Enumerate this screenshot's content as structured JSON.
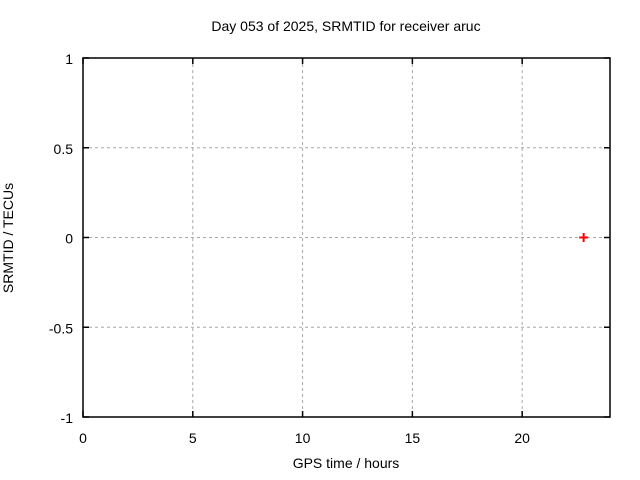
{
  "chart_data": {
    "type": "scatter",
    "title": "Day 053 of 2025, SRMTID for receiver aruc",
    "xlabel": "GPS time / hours",
    "ylabel": "SRMTID / TECUs",
    "xlim": [
      0,
      24
    ],
    "ylim": [
      -1,
      1
    ],
    "xticks": [
      0,
      5,
      10,
      15,
      20
    ],
    "yticks": [
      -1,
      -0.5,
      0,
      0.5,
      1
    ],
    "grid": true,
    "grid_style": "dashed",
    "legend": "none",
    "series": [
      {
        "marker": "plus",
        "color": "#ff0000",
        "points": [
          {
            "x": 22.8,
            "y": 0.0
          }
        ]
      }
    ]
  },
  "colors": {
    "background": "#ffffff",
    "frame": "#000000",
    "grid": "#a8a8a8",
    "text": "#000000"
  }
}
